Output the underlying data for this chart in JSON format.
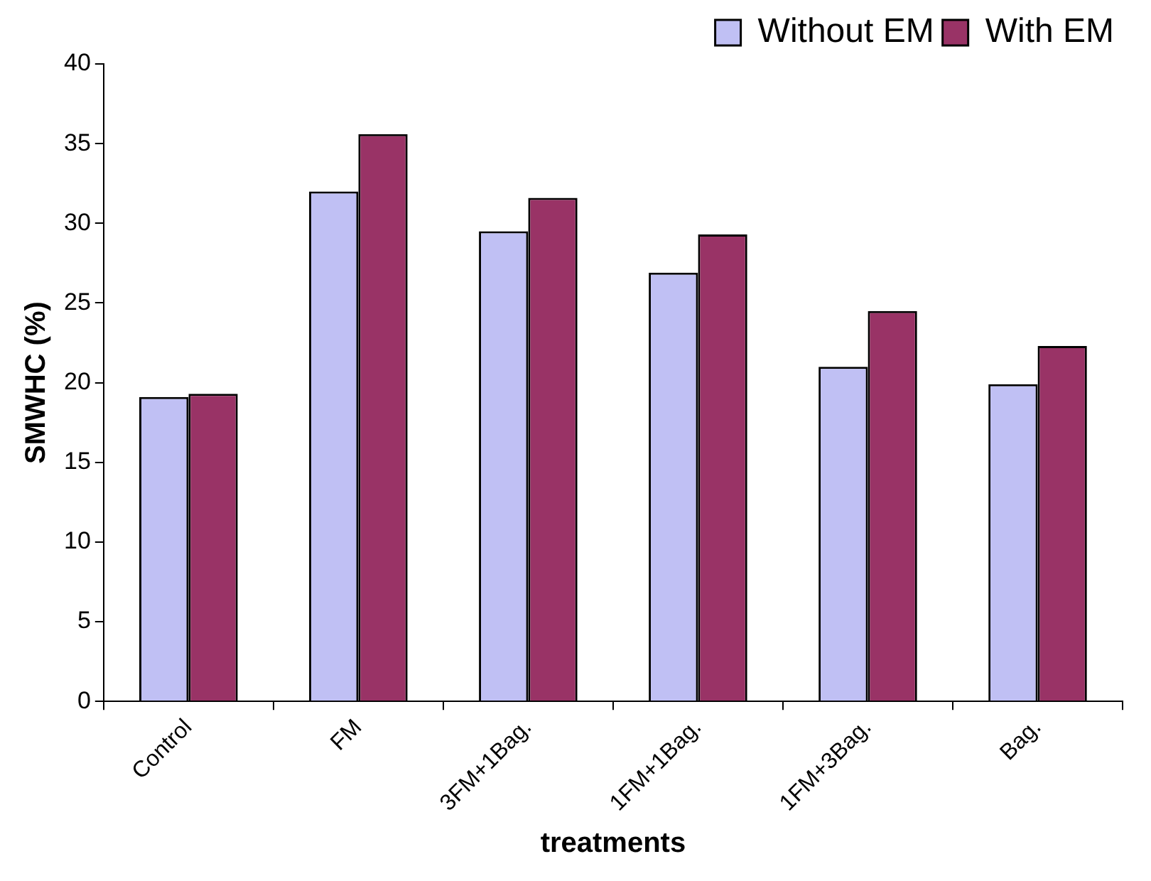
{
  "chart_data": {
    "type": "bar",
    "xlabel": "treatments",
    "ylabel": "SMWHC (%)",
    "categories": [
      "Control",
      "FM",
      "3FM+1Bag.",
      "1FM+1Bag.",
      "1FM+3Bag.",
      "Bag."
    ],
    "series": [
      {
        "name": "Without EM",
        "color": "#c0c0f4",
        "values": [
          19.1,
          32.0,
          29.5,
          26.9,
          21.0,
          19.9
        ]
      },
      {
        "name": "With EM",
        "color": "#993366",
        "values": [
          19.3,
          35.6,
          31.6,
          29.3,
          24.5,
          22.3
        ]
      }
    ],
    "ylim": [
      0,
      40
    ],
    "yticks": [
      0,
      5,
      10,
      15,
      20,
      25,
      30,
      35,
      40
    ],
    "grid": false,
    "legend": "top right"
  }
}
